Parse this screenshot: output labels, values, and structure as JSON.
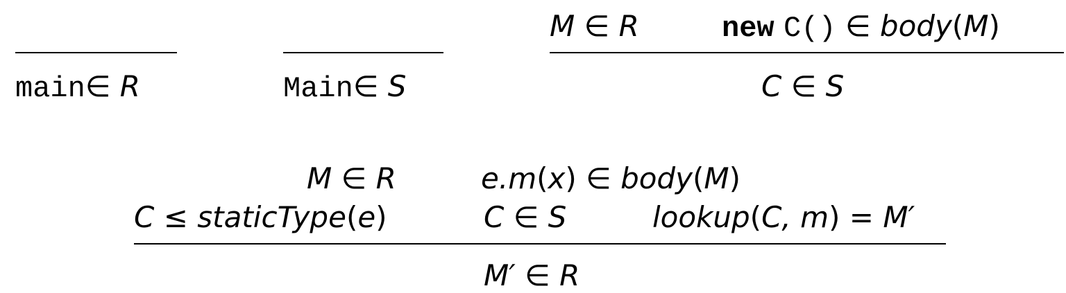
{
  "rules": {
    "main": {
      "conclusion": {
        "name": "main",
        "op": "∈",
        "set": "R"
      }
    },
    "Main": {
      "conclusion": {
        "name": "Main",
        "op": "∈",
        "set": "S"
      }
    },
    "new": {
      "premise1": {
        "var": "M",
        "op": "∈",
        "set": "R"
      },
      "premise2": {
        "kw": "new",
        "ctor": "C()",
        "op": "∈",
        "fn": "body",
        "lp": "(",
        "arg": "M",
        "rp": ")"
      },
      "conclusion": {
        "var": "C",
        "op": "∈",
        "set": "S"
      }
    },
    "call": {
      "premise1": {
        "var": "M",
        "op": "∈",
        "set": "R"
      },
      "premise2": {
        "recv": "e.m",
        "lp": "(",
        "arg": "x",
        "rp": ")",
        "op": "∈",
        "fn": "body",
        "lp2": "(",
        "arg2": "M",
        "rp2": ")"
      },
      "premise3": {
        "var": "C",
        "op": "≤",
        "fn": "staticType",
        "lp": "(",
        "arg": "e",
        "rp": ")"
      },
      "premise4": {
        "var": "C",
        "op": "∈",
        "set": "S"
      },
      "premise5": {
        "fn": "lookup",
        "lp": "(",
        "args": "C, m",
        "rp": ")",
        "op": "=",
        "result": "M′"
      },
      "conclusion": {
        "var": "M′",
        "op": "∈",
        "set": "R"
      }
    }
  }
}
